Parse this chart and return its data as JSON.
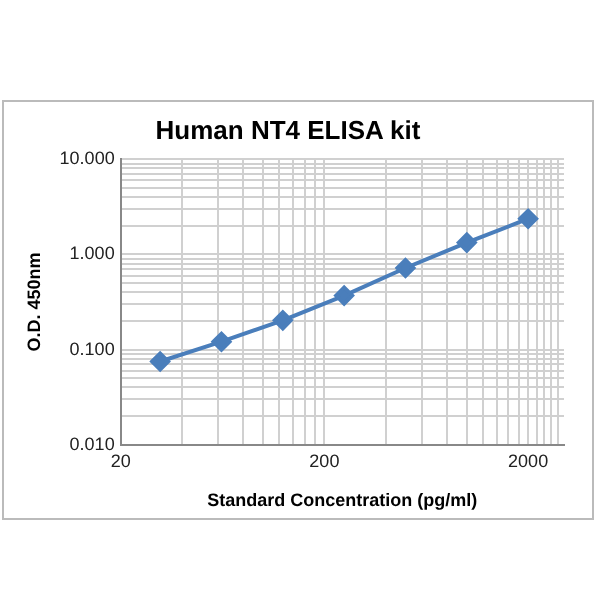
{
  "chart_data": {
    "type": "line",
    "title": "Human NT4 ELISA kit",
    "xlabel": "Standard Concentration (pg/ml)",
    "ylabel": "O.D. 450nm",
    "x": [
      31.25,
      62.5,
      125,
      250,
      500,
      1000,
      2000
    ],
    "series": [
      {
        "color": "#4a7ebb",
        "values": [
          0.075,
          0.121,
          0.203,
          0.369,
          0.72,
          1.33,
          2.37
        ]
      }
    ],
    "log": "xy",
    "grid": true,
    "legend": false,
    "marker": "diamond",
    "line_style": "solid",
    "xlim": [
      20,
      3000
    ],
    "xticks": [
      20,
      {
        "value": 40,
        "label": null
      },
      {
        "value": 60,
        "label": null
      },
      {
        "value": 80,
        "label": null
      },
      {
        "value": 100,
        "label": null
      },
      {
        "value": 120,
        "label": null
      },
      {
        "value": 140,
        "label": null
      },
      {
        "value": 160,
        "label": null
      },
      {
        "value": 180,
        "label": null
      },
      200,
      {
        "value": 400,
        "label": null
      },
      {
        "value": 600,
        "label": null
      },
      {
        "value": 800,
        "label": null
      },
      {
        "value": 1000,
        "label": null
      },
      {
        "value": 1200,
        "label": null
      },
      {
        "value": 1400,
        "label": null
      },
      {
        "value": 1600,
        "label": null
      },
      {
        "value": 1800,
        "label": null
      },
      2000,
      {
        "value": 2200,
        "label": null
      },
      {
        "value": 2400,
        "label": null
      },
      {
        "value": 2600,
        "label": null
      },
      {
        "value": 2800,
        "label": null
      }
    ],
    "ylim": [
      0.01,
      10
    ],
    "yticks": [
      {
        "value": 0.01,
        "label": "0.010"
      },
      {
        "value": 0.02,
        "label": null
      },
      {
        "value": 0.03,
        "label": null
      },
      {
        "value": 0.04,
        "label": null
      },
      {
        "value": 0.05,
        "label": null
      },
      {
        "value": 0.06,
        "label": null
      },
      {
        "value": 0.07,
        "label": null
      },
      {
        "value": 0.08,
        "label": null
      },
      {
        "value": 0.09,
        "label": null
      },
      {
        "value": 0.1,
        "label": "0.100"
      },
      {
        "value": 0.2,
        "label": null
      },
      {
        "value": 0.3,
        "label": null
      },
      {
        "value": 0.4,
        "label": null
      },
      {
        "value": 0.5,
        "label": null
      },
      {
        "value": 0.6,
        "label": null
      },
      {
        "value": 0.7,
        "label": null
      },
      {
        "value": 0.8,
        "label": null
      },
      {
        "value": 0.9,
        "label": null
      },
      {
        "value": 1,
        "label": "1.000"
      },
      {
        "value": 2,
        "label": null
      },
      {
        "value": 3,
        "label": null
      },
      {
        "value": 4,
        "label": null
      },
      {
        "value": 5,
        "label": null
      },
      {
        "value": 6,
        "label": null
      },
      {
        "value": 7,
        "label": null
      },
      {
        "value": 8,
        "label": null
      },
      {
        "value": 9,
        "label": null
      },
      {
        "value": 10,
        "label": "10.000"
      }
    ]
  }
}
